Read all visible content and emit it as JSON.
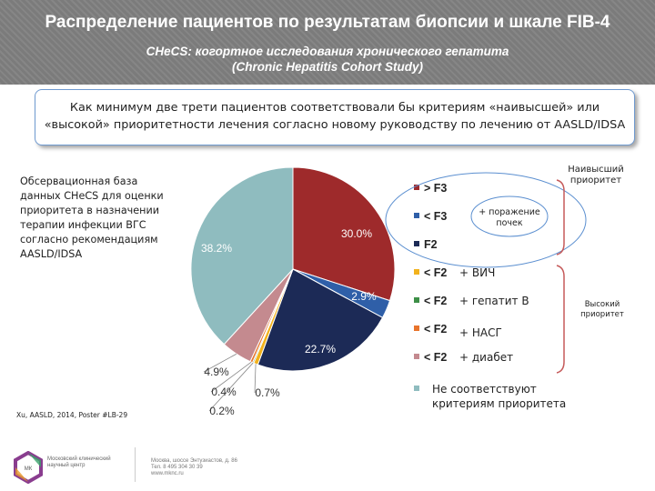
{
  "header": {
    "title": "Распределение пациентов по результатам биопсии и шкале FIB-4",
    "subtitle_line1": "CHeCS: когортное исследования хронического гепатита",
    "subtitle_line2": "(Chronic Hepatitis Cohort Study)"
  },
  "callout": {
    "line1": "Как минимум две трети пациентов соответствовали бы критериям «наивысшей» или",
    "line2": "«высокой» приоритетности лечения согласно новому руководству по лечению от AASLD/IDSA"
  },
  "side_text": "Обсервационная база данных CHeCS для оценки приоритета в назначении терапии инфекции ВГС согласно рекомендациям AASLD/IDSA",
  "source": "Xu, AASLD, 2014, Poster #LB-29",
  "priority_labels": {
    "highest": "Наивысший приоритет",
    "high": "Высокий приоритет",
    "kidney": "+ поражение почек"
  },
  "colors": {
    "header_bg": "#7f7f7f",
    "callout_border": "#6f9ad0",
    "bracket": "#c55a5a",
    "ellipse": "#5b8fd0"
  },
  "chart_data": {
    "type": "pie",
    "slices": [
      {
        "legend_label": "> F3",
        "value": 30.0,
        "label": "30.0%",
        "color": "#9e2a2b"
      },
      {
        "legend_label": "< F3",
        "value": 2.9,
        "label": "2.9%",
        "color": "#2f5fa8"
      },
      {
        "legend_label": "F2",
        "value": 22.7,
        "label": "22.7%",
        "color": "#1c2a56"
      },
      {
        "legend_label": "< F2  + ВИЧ",
        "value": 0.7,
        "label": "0.7%",
        "color": "#f2b21c"
      },
      {
        "legend_label": "< F2  + гепатит В",
        "value": 0.2,
        "label": "0.2%",
        "color": "#3d8f47"
      },
      {
        "legend_label": "< F2  + НАСГ",
        "value": 0.4,
        "label": "0.4%",
        "color": "#e8742c"
      },
      {
        "legend_label": "< F2  + диабет",
        "value": 4.9,
        "label": "4.9%",
        "color": "#c48a8f"
      },
      {
        "legend_label": "Не соответствуют критериям приоритета",
        "value": 38.2,
        "label": "38.2%",
        "color": "#8fbcbf"
      }
    ],
    "legend_icons": [
      "> ",
      "< ",
      "",
      "< ",
      "< ",
      "< ",
      "< ",
      ""
    ],
    "legend_parts": [
      [
        "> F3"
      ],
      [
        "< F3"
      ],
      [
        "F2"
      ],
      [
        "< F2",
        "+ ВИЧ"
      ],
      [
        "< F2",
        "+ гепатит В"
      ],
      [
        "< F2",
        "+ НАСГ"
      ],
      [
        "< F2",
        "+ диабет"
      ],
      [
        "Не соответствуют",
        "критериям приоритета"
      ]
    ]
  },
  "footer": {
    "logo_text": "Московский клинический научный центр",
    "contacts_line1": "Москва, шоссе Энтузиастов, д. 86",
    "contacts_line2": "Тел. 8 495 304 30 39",
    "contacts_line3": "www.mknc.ru"
  }
}
